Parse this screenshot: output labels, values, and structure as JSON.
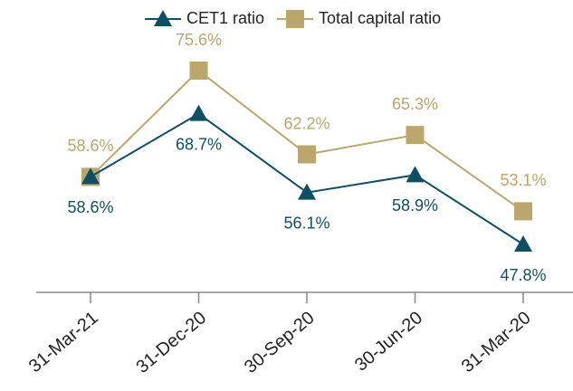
{
  "chart_data": {
    "type": "line",
    "categories": [
      "31-Mar-21",
      "31-Dec-20",
      "30-Sep-20",
      "30-Jun-20",
      "31-Mar-20"
    ],
    "series": [
      {
        "name": "CET1 ratio",
        "color": "#0e4f63",
        "marker": "triangle",
        "values": [
          58.6,
          68.7,
          56.1,
          58.9,
          47.8
        ],
        "value_labels": [
          "58.6%",
          "68.7%",
          "56.1%",
          "58.9%",
          "47.8%"
        ]
      },
      {
        "name": "Total capital ratio",
        "color": "#bba66c",
        "marker": "square",
        "values": [
          58.6,
          75.6,
          62.2,
          65.3,
          53.1
        ],
        "value_labels": [
          "58.6%",
          "75.6%",
          "62.2%",
          "65.3%",
          "53.1%"
        ]
      }
    ],
    "legend": "top"
  }
}
